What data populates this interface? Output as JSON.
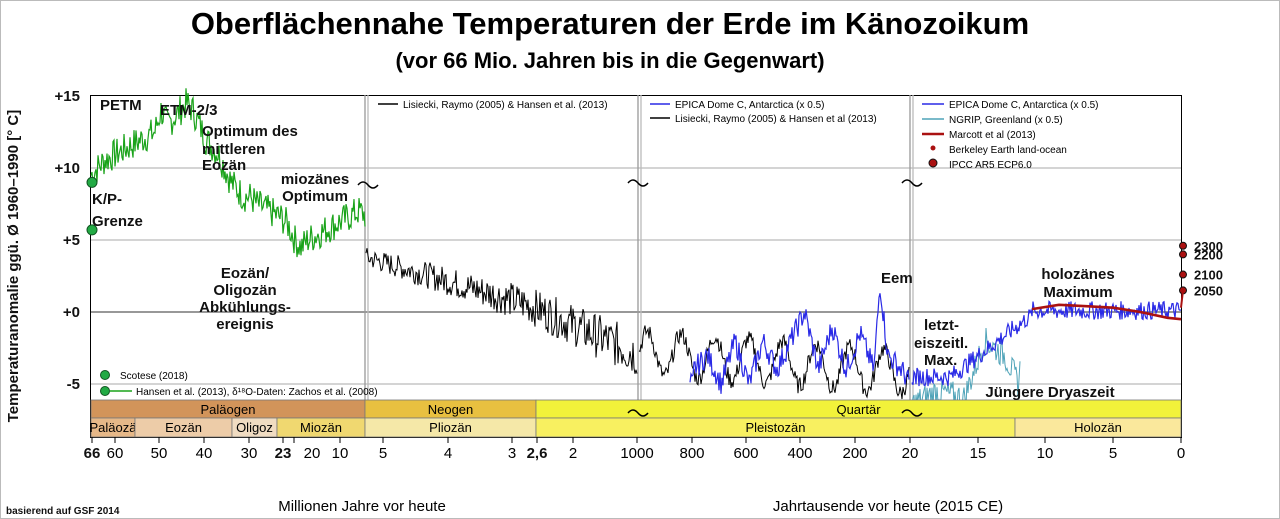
{
  "chart_data": {
    "type": "line",
    "title": "Oberflächennahe Temperaturen der Erde im Känozoikum",
    "subtitle": "(vor 66 Mio. Jahren bis in die Gegenwart)",
    "ylabel": "Temperaturanomalie ggü. Ø 1960–1990 [° C]",
    "ylim": [
      -6,
      15
    ],
    "yticks": [
      "+15",
      "+10",
      "+5",
      "+0",
      "-5"
    ],
    "xlabel_left": "Millionen Jahre vor heute",
    "xlabel_right": "Jahrtausende vor heute (2015 CE)",
    "credit": "basierend auf GSF 2014",
    "panels": [
      {
        "id": "p1",
        "xrange": [
          66,
          23
        ],
        "ticks": [
          "66",
          "60",
          "50",
          "40",
          "30",
          "20",
          "23"
        ]
      },
      {
        "id": "p2",
        "xrange": [
          23,
          2.6
        ],
        "ticks": [
          "10",
          "5",
          "4",
          "3",
          "2,6"
        ]
      },
      {
        "id": "p3",
        "xrange": [
          2.6,
          1000
        ],
        "ticks": [
          "2",
          "1000",
          "800",
          "600",
          "400",
          "200",
          "20"
        ]
      },
      {
        "id": "p4",
        "xrange": [
          20,
          0
        ],
        "ticks": [
          "15",
          "10",
          "5",
          "0"
        ]
      }
    ],
    "series": [
      {
        "name": "Hansen et al. (2013), δ¹⁸O-Daten: Zachos et al. (2008)",
        "color": "#1aa31a",
        "x": [
          66,
          64,
          62,
          60,
          58,
          56,
          55,
          54,
          53,
          52,
          51,
          50,
          49,
          48,
          47,
          46,
          45,
          44,
          43,
          42,
          41,
          40,
          38,
          36,
          35,
          34,
          33,
          32,
          30,
          28,
          26,
          24,
          22,
          20,
          19,
          18,
          17,
          16,
          15,
          14,
          13,
          12,
          11,
          10,
          9,
          8,
          7,
          6,
          5
        ],
        "y": [
          9.5,
          10.5,
          11,
          11.5,
          12,
          12.5,
          14,
          13,
          13.5,
          14,
          14.5,
          14,
          13,
          12,
          11.5,
          11,
          10,
          9,
          8.5,
          8,
          8,
          7.5,
          7,
          6.5,
          6,
          5,
          4.5,
          5,
          5.5,
          6,
          6.5,
          7,
          6.5,
          6,
          6.5,
          7,
          7.5,
          6.5,
          5.5,
          5,
          5.5,
          5,
          4.5,
          4,
          3.5,
          4,
          3.5,
          3,
          3
        ]
      },
      {
        "name": "Lisiecki, Raymo (2005) & Hansen et al. (2013)",
        "color": "#000000",
        "x": [
          5,
          4.5,
          4,
          3.5,
          3,
          2.6,
          2,
          1.5,
          1000,
          800,
          600,
          400,
          200,
          20
        ],
        "y": [
          3,
          2.5,
          2,
          1.5,
          0.5,
          0,
          -1,
          -2,
          -3,
          -4,
          -4.5,
          -4.5,
          -4,
          -5
        ]
      },
      {
        "name": "EPICA Dome C, Antarctica (x 0.5)",
        "color": "#2a2ae6",
        "x": [
          800,
          750,
          700,
          650,
          600,
          550,
          500,
          450,
          400,
          350,
          300,
          250,
          200,
          150,
          128,
          100,
          50,
          20
        ],
        "y": [
          -4,
          -3,
          -5,
          -2,
          -5,
          -2,
          -4,
          -2,
          0,
          -4,
          -1,
          -4,
          -1.5,
          -4,
          2,
          -3,
          -4,
          -5
        ]
      },
      {
        "name": "NGRIP, Greenland (x 0.5)",
        "color": "#4fa3b8",
        "x": [
          20,
          18,
          16,
          14.5,
          13,
          12,
          11.5,
          11
        ],
        "y": [
          -6.5,
          -5.5,
          -6,
          -2,
          -3,
          -5,
          -1,
          0.5
        ]
      },
      {
        "name": "Marcott et al (2013)",
        "color": "#aa1111",
        "x": [
          11,
          9,
          7,
          5,
          3,
          1,
          0
        ],
        "y": [
          0.2,
          0.5,
          0.4,
          0.3,
          0,
          -0.4,
          -0.5
        ]
      }
    ],
    "points": [
      {
        "name": "Scotese (2018)",
        "color": "#22aa44",
        "x": 66,
        "y": 9
      },
      {
        "name": "Scotese (2018)",
        "color": "#22aa44",
        "x": 66,
        "y": 5.7
      }
    ],
    "projections": [
      {
        "label": "2300",
        "y": 4.6
      },
      {
        "label": "2200",
        "y": 4.0
      },
      {
        "label": "2100",
        "y": 2.6
      },
      {
        "label": "2050",
        "y": 1.5
      }
    ],
    "legend_p2": [
      "Lisiecki, Raymo (2005) & Hansen et al. (2013)"
    ],
    "legend_p3": [
      "EPICA Dome C, Antarctica (x 0.5)",
      "Lisiecki, Raymo (2005) & Hansen et al (2013)"
    ],
    "legend_p4": [
      "EPICA Dome C, Antarctica (x 0.5)",
      "NGRIP, Greenland (x 0.5)",
      "Marcott et al (2013)",
      "Berkeley Earth land-ocean",
      "IPCC AR5 ECP6.0"
    ],
    "legend_p1": [
      "Scotese (2018)",
      "Hansen et al. (2013), δ¹⁸O-Daten: Zachos et al. (2008)"
    ],
    "annotations": [
      "PETM",
      "ETM-2/3",
      "Optimum des",
      "mittleren",
      "Eozän",
      "K/P-",
      "Grenze",
      "Eozän/",
      "Oligozän",
      "Abkühlungs-",
      "ereignis",
      "miozänes",
      "Optimum",
      "Eem",
      "letzt-",
      "eiszeitl.",
      "Max.",
      "holozänes",
      "Maximum",
      "Jüngere Dryaszeit"
    ],
    "periods": [
      "Paläogen",
      "Neogen",
      "Quartär"
    ],
    "epochs": [
      "Paläozä",
      "Eozän",
      "Oligoz",
      "Miozän",
      "Pliozän",
      "Pleistozän",
      "Holozän"
    ]
  }
}
